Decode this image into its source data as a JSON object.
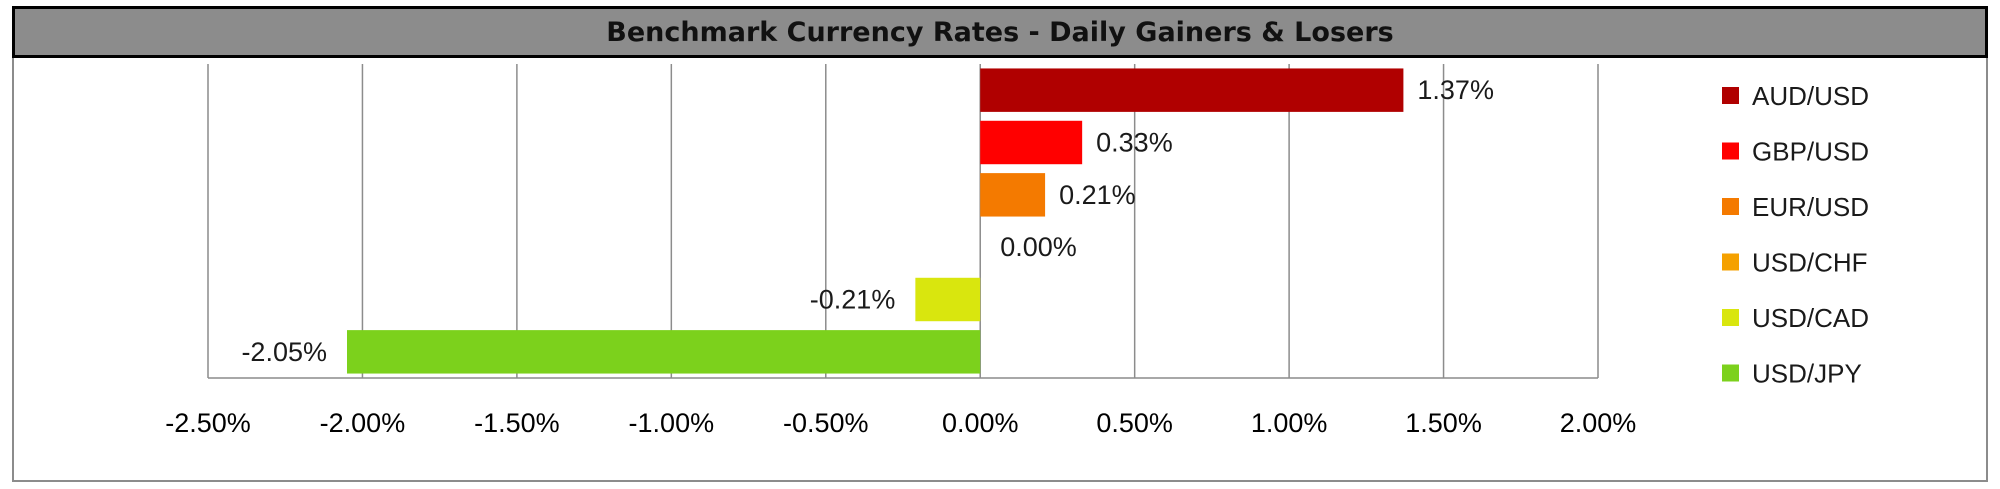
{
  "chart_data": {
    "type": "bar",
    "orientation": "horizontal",
    "title": "Benchmark Currency Rates - Daily Gainers & Losers",
    "categories": [
      "AUD/USD",
      "GBP/USD",
      "EUR/USD",
      "USD/CHF",
      "USD/CAD",
      "USD/JPY"
    ],
    "values": [
      1.37,
      0.33,
      0.21,
      0.0,
      -0.21,
      -2.05
    ],
    "data_labels": [
      "1.37%",
      "0.33%",
      "0.21%",
      "0.00%",
      "-0.21%",
      "-2.05%"
    ],
    "colors": [
      "#b00000",
      "#ff0000",
      "#f47a00",
      "#f5a100",
      "#d9e60e",
      "#7cd11c"
    ],
    "xlim": [
      -2.5,
      2.0
    ],
    "x_ticks": [
      -2.5,
      -2.0,
      -1.5,
      -1.0,
      -0.5,
      0.0,
      0.5,
      1.0,
      1.5,
      2.0
    ],
    "x_tick_labels": [
      "-2.50%",
      "-2.00%",
      "-1.50%",
      "-1.00%",
      "-0.50%",
      "0.00%",
      "0.50%",
      "1.00%",
      "1.50%",
      "2.00%"
    ],
    "grid": "vertical",
    "legend_position": "right"
  }
}
